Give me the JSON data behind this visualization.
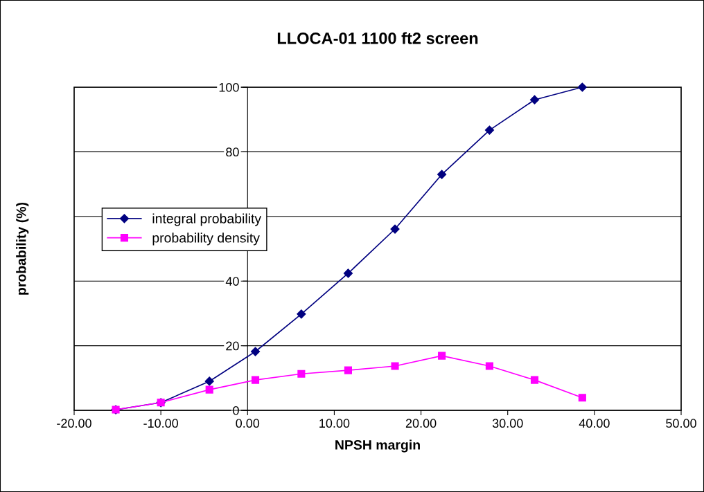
{
  "chart_data": {
    "type": "line",
    "title": "LLOCA-01 1100 ft2 screen",
    "xlabel": "NPSH margin",
    "ylabel": "probability (%)",
    "xlim": [
      -20,
      50
    ],
    "xticks": [
      {
        "value": -20,
        "label": "-20.00"
      },
      {
        "value": -10,
        "label": "-10.00"
      },
      {
        "value": 0,
        "label": "0.00"
      },
      {
        "value": 10,
        "label": "10.00"
      },
      {
        "value": 20,
        "label": "20.00"
      },
      {
        "value": 30,
        "label": "30.00"
      },
      {
        "value": 40,
        "label": "40.00"
      },
      {
        "value": 50,
        "label": "50.00"
      }
    ],
    "ylim": [
      0,
      100
    ],
    "yticks": [
      0,
      20,
      40,
      {
        "value": 60,
        "label": null
      },
      80,
      100
    ],
    "grid": "y",
    "legend": "left",
    "x": [
      -15.2,
      -10.0,
      -4.4,
      0.9,
      6.2,
      11.6,
      17.0,
      22.4,
      27.9,
      33.1,
      38.6
    ],
    "series": [
      {
        "name": "integral probability",
        "color": "#000080",
        "marker": "diamond",
        "values": [
          0.2,
          2.4,
          9.0,
          18.2,
          29.8,
          42.4,
          56.1,
          73.0,
          86.7,
          96.1,
          100
        ]
      },
      {
        "name": "probability density",
        "color": "#ff00ff",
        "marker": "square",
        "values": [
          0.2,
          2.4,
          6.4,
          9.4,
          11.3,
          12.4,
          13.7,
          16.9,
          13.7,
          9.4,
          3.9
        ]
      }
    ]
  }
}
